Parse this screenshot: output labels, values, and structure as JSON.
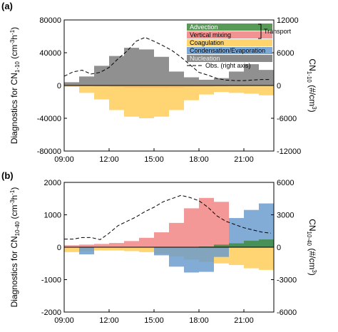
{
  "chart_data": [
    {
      "panel": "(a)",
      "type": "bar",
      "ylabel_left": {
        "main": "Diagnostics for CN",
        "sub": "1-10",
        "tail": " (cm",
        "sup1": "-3",
        "mid": "h",
        "sup2": "-1",
        "end": ")"
      },
      "ylabel_right": {
        "main": "CN",
        "sub": "1-10",
        "tail": " (#/cm",
        "sup": "3",
        "end": ")"
      },
      "ylim_left": [
        -80000,
        80000
      ],
      "yticks_left": [
        "80000",
        "40000",
        "0",
        "-40000",
        "-80000"
      ],
      "ytick_values_left": [
        80000,
        40000,
        0,
        -40000,
        -80000
      ],
      "ylim_right": [
        -12000,
        12000
      ],
      "yticks_right": [
        "12000",
        "6000",
        "0",
        "-6000",
        "-12000"
      ],
      "ytick_values_right": [
        12000,
        6000,
        0,
        -6000,
        -12000
      ],
      "xticks": [
        "09:00",
        "12:00",
        "15:00",
        "18:00",
        "21:00"
      ],
      "xtick_values": [
        9,
        12,
        15,
        18,
        21
      ],
      "x_range": [
        9,
        23
      ],
      "bin_start_hours": [
        9,
        10,
        11,
        12,
        13,
        14,
        15,
        16,
        17,
        18,
        19,
        20,
        21,
        22
      ],
      "bin_width_hours": 1,
      "series": [
        {
          "name": "Advection",
          "color": "#3a8a3a",
          "values": [
            0,
            0,
            0,
            0,
            0,
            0,
            0,
            0,
            0,
            0,
            0,
            0,
            0,
            0
          ]
        },
        {
          "name": "Vertical mixing",
          "color": "#f08080",
          "values": [
            0,
            -800,
            -1200,
            -2000,
            -2500,
            -3000,
            -3000,
            -2500,
            -2000,
            -1500,
            -1000,
            -600,
            -400,
            -300
          ]
        },
        {
          "name": "Coagulation",
          "color": "#ffcc55",
          "values": [
            -1500,
            -9000,
            -17000,
            -30000,
            -38000,
            -40000,
            -38000,
            -30000,
            -18000,
            -11000,
            -8000,
            -9000,
            -10000,
            -12000
          ]
        },
        {
          "name": "Condensation/Evaporation",
          "color": "#6699cc",
          "values": [
            0,
            0,
            0,
            0,
            0,
            0,
            0,
            0,
            0,
            0,
            0,
            0,
            0,
            0
          ]
        },
        {
          "name": "Nucleation",
          "color": "#777777",
          "values": [
            4000,
            11000,
            24000,
            36000,
            46000,
            44000,
            35000,
            17000,
            10000,
            7000,
            9000,
            17000,
            26000,
            19000
          ]
        }
      ],
      "obs": {
        "name": "Obs. (right axis)",
        "x": [
          9,
          9.6,
          10.2,
          10.8,
          11.4,
          12,
          12.6,
          13.2,
          13.8,
          14.4,
          15,
          15.6,
          16.2,
          16.8,
          17.4,
          18,
          18.6,
          19.2,
          19.8,
          20.4,
          21,
          21.6,
          22.2,
          22.8
        ],
        "y": [
          1700,
          2500,
          2800,
          2100,
          2400,
          3300,
          4900,
          6300,
          8100,
          8800,
          8100,
          7300,
          6400,
          5200,
          3800,
          2400,
          1900,
          1300,
          1000,
          900,
          900,
          1000,
          1100,
          1100
        ]
      },
      "legend": {
        "entries": [
          "Advection",
          "Vertical mixing",
          "Coagulation",
          "Condensation/Evaporation",
          "Nucleation",
          "Obs. (right axis)"
        ],
        "group_label": "Transport",
        "placement": "top-right"
      }
    },
    {
      "panel": "(b)",
      "type": "bar",
      "ylabel_left": {
        "main": "Diagnostics for CN",
        "sub": "10-40",
        "tail": " (cm",
        "sup1": "-3",
        "mid": "h",
        "sup2": "-1",
        "end": ")"
      },
      "ylabel_right": {
        "main": "CN",
        "sub": "10-40",
        "tail": " (#/cm",
        "sup": "3",
        "end": ")"
      },
      "ylim_left": [
        -2000,
        2000
      ],
      "yticks_left": [
        "2000",
        "1000",
        "0",
        "-1000",
        "-2000"
      ],
      "ytick_values_left": [
        2000,
        1000,
        0,
        -1000,
        -2000
      ],
      "ylim_right": [
        -6000,
        6000
      ],
      "yticks_right": [
        "6000",
        "3000",
        "0",
        "-3000",
        "-6000"
      ],
      "ytick_values_right": [
        6000,
        3000,
        0,
        -3000,
        -6000
      ],
      "xticks": [
        "09:00",
        "12:00",
        "15:00",
        "18:00",
        "21:00"
      ],
      "xtick_values": [
        9,
        12,
        15,
        18,
        21
      ],
      "x_range": [
        9,
        23
      ],
      "bin_start_hours": [
        9,
        10,
        11,
        12,
        13,
        14,
        15,
        16,
        17,
        18,
        19,
        20,
        21,
        22
      ],
      "bin_width_hours": 1,
      "series": [
        {
          "name": "Vertical mixing",
          "color": "#f08080",
          "values": [
            60,
            80,
            100,
            130,
            190,
            290,
            460,
            750,
            1200,
            1520,
            1400,
            0,
            0,
            0
          ]
        },
        {
          "name": "Condensation/Evaporation",
          "color": "#6699cc",
          "values": [
            0,
            0,
            0,
            0,
            0,
            0,
            0,
            0,
            0,
            0,
            0,
            900,
            1150,
            1350
          ]
        },
        {
          "name": "Coagulation",
          "color": "#ffcc55",
          "values": [
            -150,
            -120,
            -100,
            -100,
            -120,
            -150,
            -200,
            -280,
            -380,
            -450,
            -500,
            -550,
            -650,
            -700
          ]
        },
        {
          "name": "Condensation/Evaporation (negative)",
          "color": "#6699cc",
          "values": [
            0,
            -220,
            0,
            0,
            0,
            0,
            -250,
            -600,
            -780,
            -760,
            -300,
            0,
            0,
            0
          ]
        },
        {
          "name": "Advection",
          "color": "#3a8a3a",
          "values": [
            0,
            0,
            0,
            0,
            0,
            0,
            0,
            0,
            0,
            20,
            80,
            120,
            200,
            240
          ]
        }
      ],
      "obs": {
        "name": "Obs. (right axis)",
        "x": [
          9,
          9.6,
          10.2,
          10.8,
          11.4,
          12,
          12.6,
          13.2,
          13.8,
          14.4,
          15,
          15.6,
          16.2,
          16.8,
          17.4,
          18,
          18.6,
          19.2,
          19.8,
          20.4,
          21,
          21.6,
          22.2,
          22.8
        ],
        "y": [
          750,
          750,
          900,
          900,
          700,
          1300,
          2000,
          2400,
          2800,
          3300,
          3700,
          4200,
          4500,
          4800,
          4600,
          4300,
          3700,
          2900,
          2400,
          2100,
          1800,
          1600,
          1400,
          1300
        ]
      }
    }
  ]
}
